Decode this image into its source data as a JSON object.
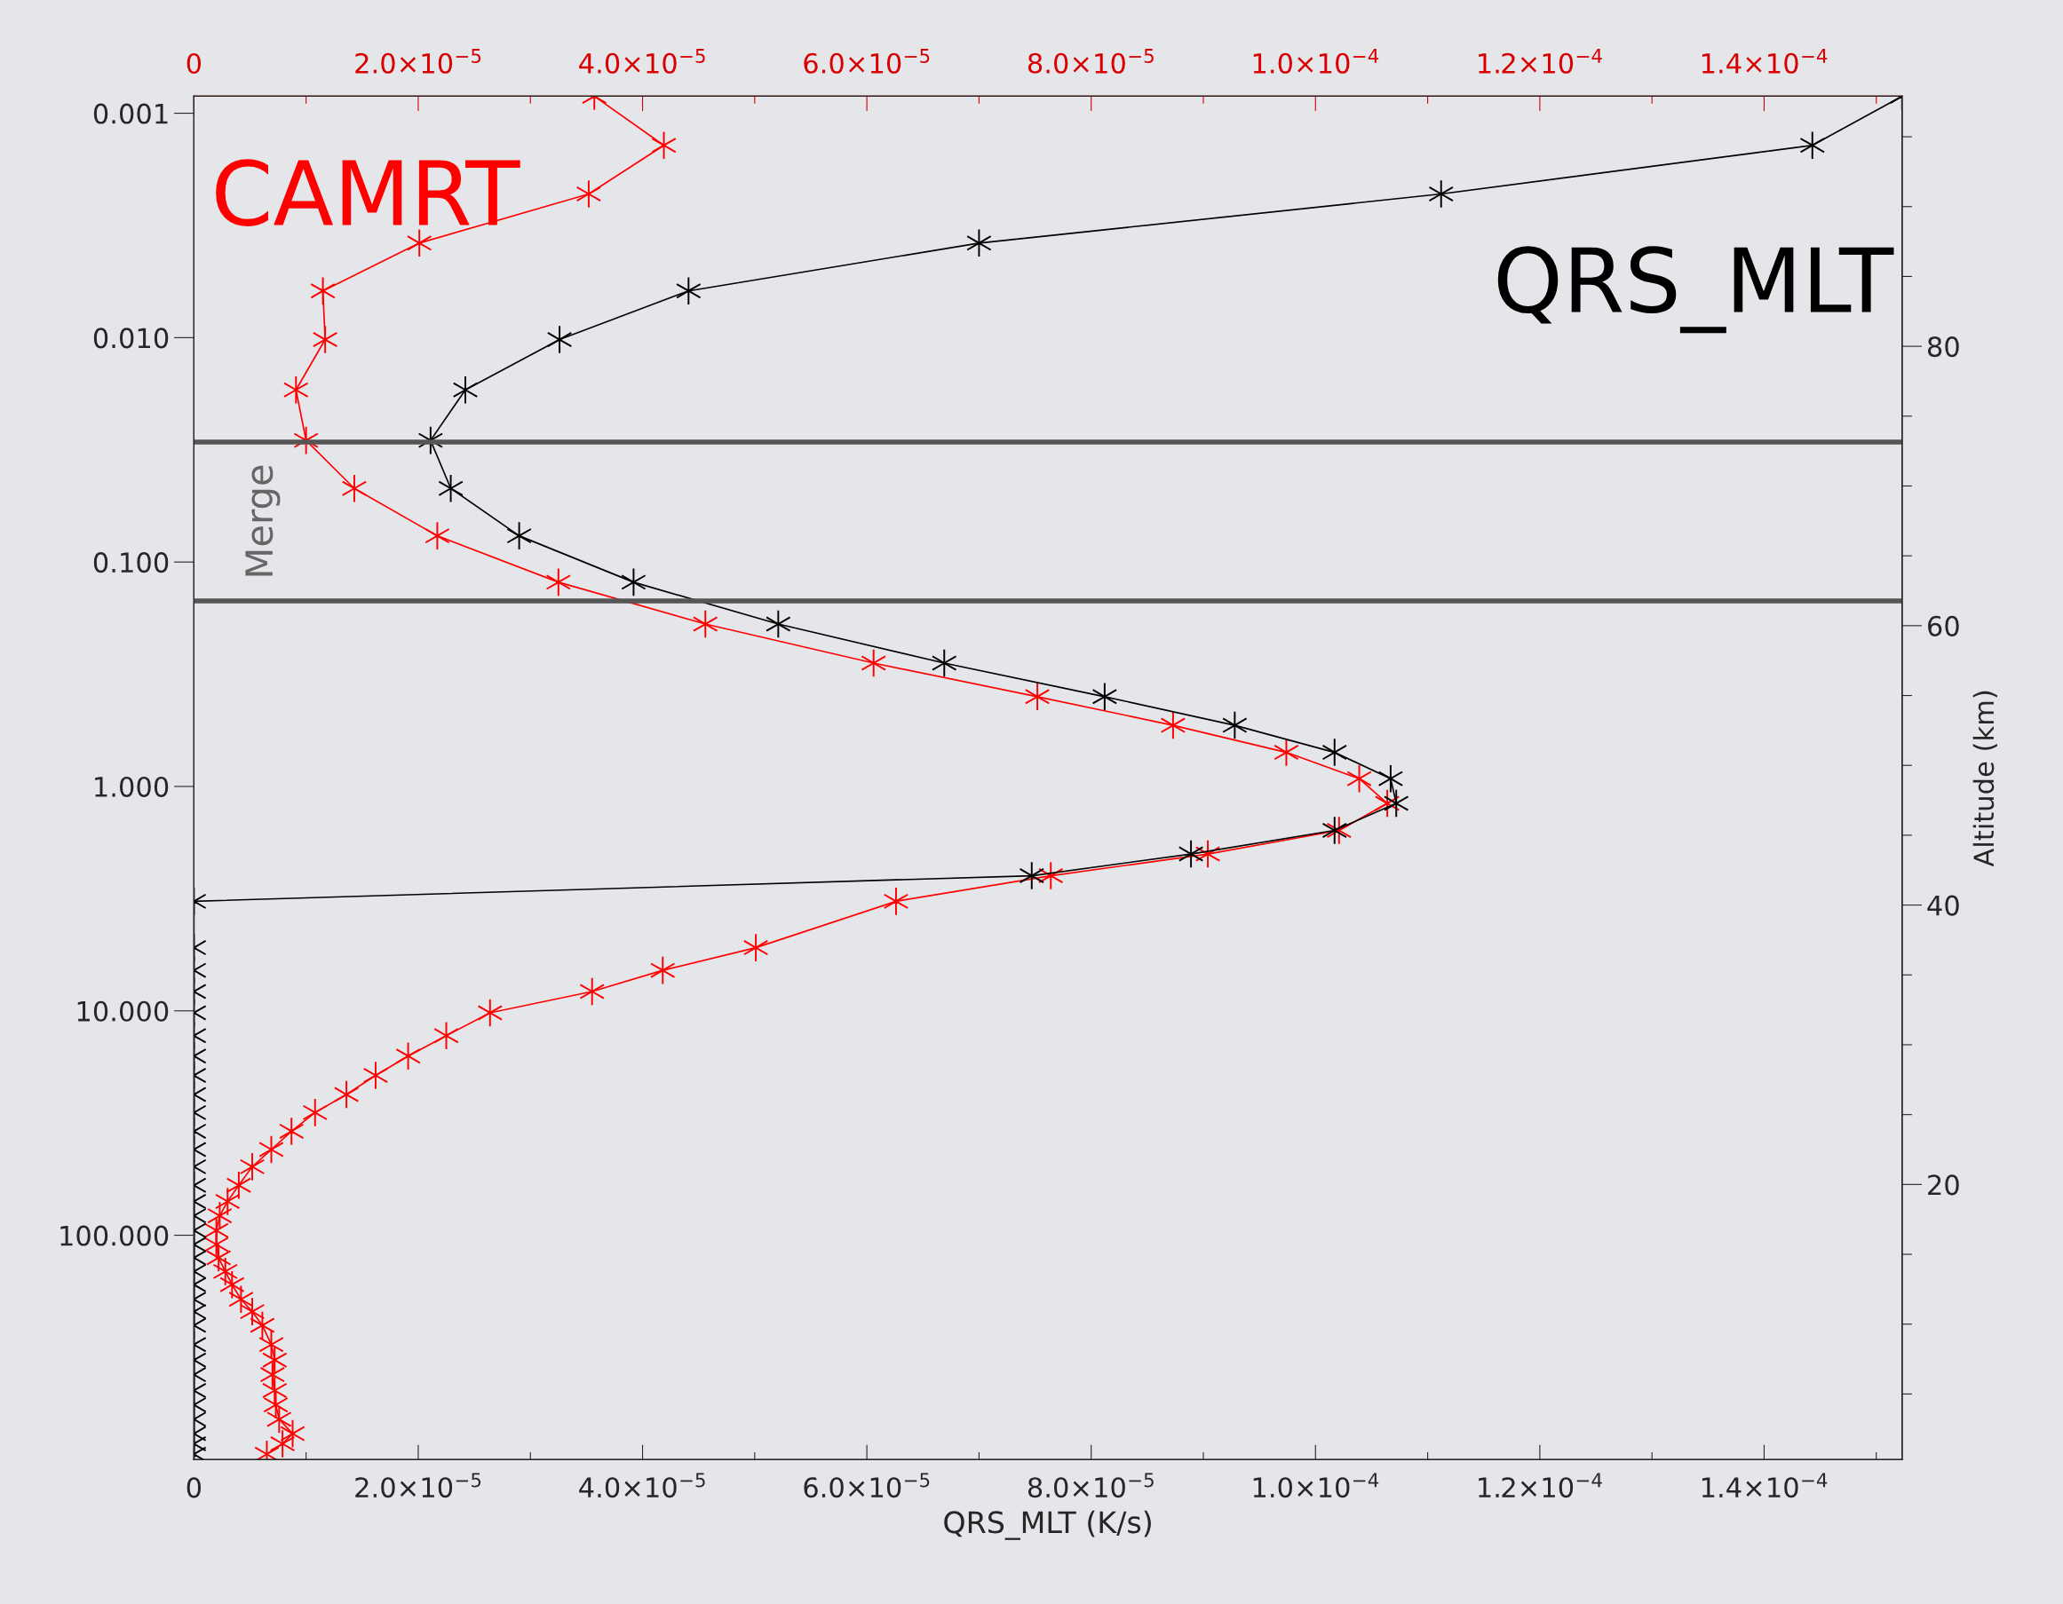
{
  "chart_data": {
    "type": "line",
    "xlabel": "QRS_MLT (K/s)",
    "y2label": "Altitude (km)",
    "log": "y",
    "marker": "cross",
    "line_style": "solid",
    "grid": false,
    "xlim": [
      0,
      0.0001523
    ],
    "ylim": [
      1000,
      0.00084
    ],
    "y2lim": [
      0.3,
      97.9
    ],
    "x2lim": [
      0,
      0.0001523
    ],
    "xticks": [
      0,
      {
        "value": 1e-05,
        "label": null
      },
      {
        "value": 2e-05,
        "label": "2.0×10$^{−5}$"
      },
      {
        "value": 3e-05,
        "label": null
      },
      {
        "value": 4e-05,
        "label": "4.0×10$^{−5}$"
      },
      {
        "value": 5e-05,
        "label": null
      },
      {
        "value": 6e-05,
        "label": "6.0×10$^{−5}$"
      },
      {
        "value": 7e-05,
        "label": null
      },
      {
        "value": 8e-05,
        "label": "8.0×10$^{−5}$"
      },
      {
        "value": 9e-05,
        "label": null
      },
      {
        "value": 0.0001,
        "label": "1.0×10$^{−4}$"
      },
      {
        "value": 0.00011,
        "label": null
      },
      {
        "value": 0.00012,
        "label": "1.2×10$^{−4}$"
      },
      {
        "value": 0.00013,
        "label": null
      },
      {
        "value": 0.00014,
        "label": "1.4×10$^{−4}$"
      },
      {
        "value": 0.00015,
        "label": null
      }
    ],
    "x2ticks": [
      0,
      {
        "value": 1e-05,
        "label": null
      },
      {
        "value": 2e-05,
        "label": "2.0×10$^{−5}$"
      },
      {
        "value": 3e-05,
        "label": null
      },
      {
        "value": 4e-05,
        "label": "4.0×10$^{−5}$"
      },
      {
        "value": 5e-05,
        "label": null
      },
      {
        "value": 6e-05,
        "label": "6.0×10$^{−5}$"
      },
      {
        "value": 7e-05,
        "label": null
      },
      {
        "value": 8e-05,
        "label": "8.0×10$^{−5}$"
      },
      {
        "value": 9e-05,
        "label": null
      },
      {
        "value": 0.0001,
        "label": "1.0×10$^{−4}$"
      },
      {
        "value": 0.00011,
        "label": null
      },
      {
        "value": 0.00012,
        "label": "1.2×10$^{−4}$"
      },
      {
        "value": 0.00013,
        "label": null
      },
      {
        "value": 0.00014,
        "label": "1.4×10$^{−4}$"
      },
      {
        "value": 0.00015,
        "label": null
      }
    ],
    "yticks": [
      {
        "value": 0.001,
        "label": "0.001"
      },
      {
        "value": 0.01,
        "label": "0.010"
      },
      {
        "value": 0.1,
        "label": "0.100"
      },
      {
        "value": 1,
        "label": "1.000"
      },
      {
        "value": 10,
        "label": "10.000"
      },
      {
        "value": 100,
        "label": "100.000"
      }
    ],
    "y2ticks": [
      {
        "value": 5,
        "label": null
      },
      {
        "value": 10,
        "label": null
      },
      {
        "value": 15,
        "label": null
      },
      20,
      {
        "value": 25,
        "label": null
      },
      {
        "value": 30,
        "label": null
      },
      {
        "value": 35,
        "label": null
      },
      40,
      {
        "value": 45,
        "label": null
      },
      {
        "value": 50,
        "label": null
      },
      {
        "value": 55,
        "label": null
      },
      60,
      {
        "value": 65,
        "label": null
      },
      {
        "value": 70,
        "label": null
      },
      {
        "value": 75,
        "label": null
      },
      80,
      {
        "value": 85,
        "label": null
      },
      {
        "value": 90,
        "label": null
      },
      {
        "value": 95,
        "label": null
      }
    ],
    "ref_lines": [
      {
        "axis": "y",
        "value": 0.0292,
        "color": "#555555"
      },
      {
        "axis": "y",
        "value": 0.149,
        "color": "#555555"
      }
    ],
    "annotations": [
      "Merge"
    ],
    "series": [
      {
        "name": "CAMRT",
        "color": "#ff0000",
        "x": [
          3.57e-05,
          4.19e-05,
          3.52e-05,
          2.01e-05,
          1.15e-05,
          1.17e-05,
          9.1e-06,
          1e-05,
          1.43e-05,
          2.17e-05,
          3.25e-05,
          4.56e-05,
          6.06e-05,
          7.52e-05,
          8.73e-05,
          9.74e-05,
          0.0001039,
          0.0001064,
          0.0001021,
          9.04e-05,
          7.64e-05,
          6.26e-05,
          5.01e-05,
          4.18e-05,
          3.55e-05,
          2.64e-05,
          2.25e-05,
          1.91e-05,
          1.62e-05,
          1.36e-05,
          1.08e-05,
          8.7e-06,
          6.9e-06,
          5.2e-06,
          4e-06,
          3e-06,
          2.3e-06,
          2e-06,
          2e-06,
          2.2e-06,
          2.8e-06,
          3.4e-06,
          4.2e-06,
          5.2e-06,
          6.1e-06,
          6.9e-06,
          7.2e-06,
          7e-06,
          7.2e-06,
          7.3e-06,
          7.6e-06,
          8.8e-06,
          7.9e-06,
          6.5e-06
        ],
        "values": [
          0.00084,
          0.00139,
          0.00229,
          0.00379,
          0.00619,
          0.0102,
          0.0171,
          0.0287,
          0.047,
          0.0764,
          0.123,
          0.189,
          0.282,
          0.398,
          0.534,
          0.705,
          0.923,
          1.19,
          1.57,
          2.0,
          2.5,
          3.25,
          5.23,
          6.6,
          8.2,
          10.2,
          12.9,
          15.9,
          19.4,
          23.6,
          28.4,
          34.4,
          41.5,
          49.5,
          59.9,
          70.7,
          81.9,
          95.2,
          110,
          126,
          145,
          166,
          193,
          219,
          252,
          307,
          360,
          418,
          492,
          570,
          661,
          766,
          850,
          946
        ]
      },
      {
        "name": "QRS_MLT",
        "color": "#000000",
        "x": [
          0.0001523,
          0.0001443,
          0.0001112,
          7e-05,
          4.41e-05,
          3.26e-05,
          2.42e-05,
          2.11e-05,
          2.29e-05,
          2.9e-05,
          3.92e-05,
          5.21e-05,
          6.69e-05,
          8.12e-05,
          9.28e-05,
          0.0001017,
          0.0001067,
          0.0001072,
          0.0001017,
          8.89e-05,
          7.47e-05,
          0,
          0,
          0,
          0,
          0,
          0,
          0,
          0,
          0,
          0,
          0,
          0,
          0,
          0,
          0,
          0,
          0,
          0,
          0,
          0,
          0,
          0,
          0,
          0,
          0,
          0,
          0,
          0,
          0,
          0,
          0,
          0,
          0
        ],
        "values": [
          0.00084,
          0.00139,
          0.00229,
          0.00379,
          0.00619,
          0.0102,
          0.0171,
          0.0287,
          0.047,
          0.0764,
          0.123,
          0.189,
          0.282,
          0.398,
          0.534,
          0.705,
          0.923,
          1.19,
          1.57,
          2.0,
          2.5,
          3.25,
          5.23,
          6.6,
          8.2,
          10.2,
          12.9,
          15.9,
          19.4,
          23.6,
          28.4,
          34.4,
          41.5,
          49.5,
          59.9,
          70.7,
          81.9,
          95.2,
          110,
          126,
          145,
          166,
          193,
          219,
          252,
          307,
          360,
          418,
          492,
          570,
          661,
          766,
          850,
          946
        ]
      }
    ]
  }
}
